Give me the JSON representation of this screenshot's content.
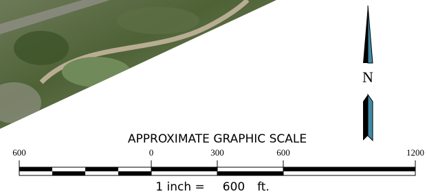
{
  "north_arrow": {
    "label": "N"
  },
  "scale_bar": {
    "title": "APPROXIMATE GRAPHIC SCALE",
    "labels": [
      "600",
      "0",
      "300",
      "600",
      "1200"
    ],
    "caption": {
      "lead": "1 inch =",
      "value": "600",
      "unit": "ft."
    }
  }
}
